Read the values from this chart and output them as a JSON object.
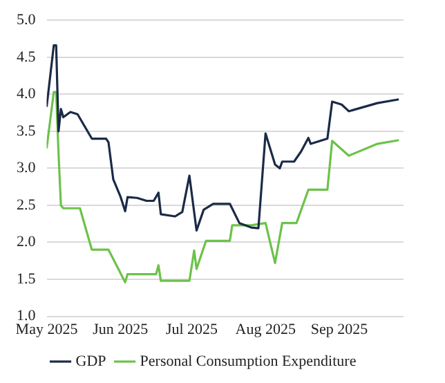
{
  "chart_data": {
    "type": "line",
    "xlim": [
      "2025-05-01",
      "2025-09-28"
    ],
    "xticks": [
      {
        "value": "2025-05-01",
        "label": "May 2025"
      },
      {
        "value": "2025-06-01",
        "label": "Jun 2025"
      },
      {
        "value": "2025-07-01",
        "label": "Jul 2025"
      },
      {
        "value": "2025-08-01",
        "label": "Aug 2025"
      },
      {
        "value": "2025-09-01",
        "label": "Sep 2025"
      }
    ],
    "ylim": [
      1.0,
      5.0
    ],
    "yticks": [
      {
        "value": 1,
        "label": "1.0"
      },
      {
        "value": 1.5,
        "label": "1.5"
      },
      {
        "value": 2,
        "label": "2.0"
      },
      {
        "value": 2.5,
        "label": "2.5"
      },
      {
        "value": 3,
        "label": "3.0"
      },
      {
        "value": 3.5,
        "label": "3.5"
      },
      {
        "value": 4,
        "label": "4.0"
      },
      {
        "value": 4.5,
        "label": "4.5"
      },
      {
        "value": 5,
        "label": "5.0"
      }
    ],
    "grid": "y",
    "legend": "bottom",
    "marker": "none",
    "line_style": "solid",
    "series": [
      {
        "name": "GDP",
        "color": "#1b2a47",
        "x": [
          "2025-05-01",
          "2025-05-04",
          "2025-05-05",
          "2025-05-06",
          "2025-05-07",
          "2025-05-08",
          "2025-05-11",
          "2025-05-14",
          "2025-05-20",
          "2025-05-26",
          "2025-05-27",
          "2025-05-29",
          "2025-06-01",
          "2025-06-03",
          "2025-06-04",
          "2025-06-08",
          "2025-06-12",
          "2025-06-15",
          "2025-06-17",
          "2025-06-18",
          "2025-06-24",
          "2025-06-27",
          "2025-06-30",
          "2025-07-03",
          "2025-07-06",
          "2025-07-10",
          "2025-07-17",
          "2025-07-21",
          "2025-07-26",
          "2025-07-29",
          "2025-08-01",
          "2025-08-05",
          "2025-08-07",
          "2025-08-08",
          "2025-08-13",
          "2025-08-16",
          "2025-08-19",
          "2025-08-20",
          "2025-08-27",
          "2025-08-29",
          "2025-09-02",
          "2025-09-05",
          "2025-09-17",
          "2025-09-26"
        ],
        "values": [
          3.83,
          4.66,
          4.66,
          3.5,
          3.8,
          3.69,
          3.76,
          3.73,
          3.4,
          3.4,
          3.35,
          2.85,
          2.62,
          2.42,
          2.61,
          2.6,
          2.56,
          2.56,
          2.67,
          2.38,
          2.35,
          2.41,
          2.9,
          2.16,
          2.44,
          2.52,
          2.52,
          2.26,
          2.2,
          2.19,
          3.47,
          3.05,
          3.0,
          3.09,
          3.09,
          3.23,
          3.41,
          3.33,
          3.4,
          3.9,
          3.86,
          3.77,
          3.88,
          3.93
        ]
      },
      {
        "name": "Personal Consumption Expenditure",
        "color": "#6cc24a",
        "x": [
          "2025-05-01",
          "2025-05-04",
          "2025-05-05",
          "2025-05-06",
          "2025-05-07",
          "2025-05-08",
          "2025-05-15",
          "2025-05-20",
          "2025-05-27",
          "2025-06-03",
          "2025-06-04",
          "2025-06-16",
          "2025-06-17",
          "2025-06-18",
          "2025-06-30",
          "2025-07-02",
          "2025-07-03",
          "2025-07-07",
          "2025-07-17",
          "2025-07-18",
          "2025-07-26",
          "2025-08-01",
          "2025-08-05",
          "2025-08-08",
          "2025-08-14",
          "2025-08-19",
          "2025-08-27",
          "2025-08-29",
          "2025-09-05",
          "2025-09-17",
          "2025-09-26"
        ],
        "values": [
          3.27,
          4.03,
          4.03,
          3.2,
          2.5,
          2.46,
          2.46,
          1.9,
          1.9,
          1.46,
          1.57,
          1.57,
          1.69,
          1.48,
          1.48,
          1.89,
          1.64,
          2.02,
          2.02,
          2.23,
          2.23,
          2.26,
          1.72,
          2.26,
          2.26,
          2.71,
          2.71,
          3.37,
          3.17,
          3.33,
          3.38
        ]
      }
    ]
  }
}
